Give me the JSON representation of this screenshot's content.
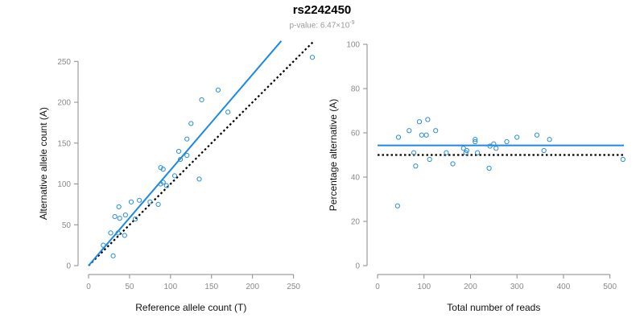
{
  "title": "rs2242450",
  "subtitle": {
    "prefix": "p-value: 6.47×10",
    "exponent": "-9"
  },
  "colors": {
    "points": "#2a8fd6",
    "fit_line": "#1e88e5",
    "reference_line": "#000000",
    "axis": "#8a8a8a",
    "tick_labels": "#8a8a8a"
  },
  "chart_data": [
    {
      "type": "scatter",
      "xlabel": "Reference allele count (T)",
      "ylabel": "Alternative allele count (A)",
      "xlim": [
        0,
        270
      ],
      "ylim": [
        0,
        270
      ],
      "xticks": [
        0,
        50,
        100,
        150,
        200,
        250
      ],
      "yticks": [
        0,
        50,
        100,
        150,
        200,
        250
      ],
      "grid": false,
      "points": [
        [
          18,
          25
        ],
        [
          27,
          40
        ],
        [
          32,
          60
        ],
        [
          38,
          58
        ],
        [
          37,
          72
        ],
        [
          45,
          62
        ],
        [
          30,
          12
        ],
        [
          36,
          40
        ],
        [
          44,
          37
        ],
        [
          52,
          78
        ],
        [
          57,
          57
        ],
        [
          62,
          80
        ],
        [
          75,
          78
        ],
        [
          85,
          75
        ],
        [
          88,
          120
        ],
        [
          91,
          118
        ],
        [
          88,
          100
        ],
        [
          91,
          102
        ],
        [
          95,
          98
        ],
        [
          105,
          110
        ],
        [
          110,
          140
        ],
        [
          112,
          130
        ],
        [
          120,
          135
        ],
        [
          120,
          155
        ],
        [
          125,
          174
        ],
        [
          135,
          106
        ],
        [
          138,
          203
        ],
        [
          158,
          215
        ],
        [
          170,
          188
        ],
        [
          273,
          255
        ]
      ],
      "fit_line": {
        "from": [
          0,
          0
        ],
        "to": [
          235,
          275
        ]
      },
      "reference_line": {
        "from": [
          0,
          0
        ],
        "to": [
          275,
          275
        ]
      }
    },
    {
      "type": "scatter",
      "xlabel": "Total number of reads",
      "ylabel": "Percentage alternative (A)",
      "xlim": [
        0,
        530
      ],
      "ylim": [
        0,
        100
      ],
      "xticks": [
        0,
        100,
        200,
        300,
        400,
        500
      ],
      "yticks": [
        0,
        20,
        40,
        60,
        80,
        100
      ],
      "grid": false,
      "points": [
        [
          43,
          27
        ],
        [
          45,
          58
        ],
        [
          68,
          61
        ],
        [
          78,
          51
        ],
        [
          82,
          45
        ],
        [
          90,
          65
        ],
        [
          95,
          59
        ],
        [
          105,
          59
        ],
        [
          108,
          66
        ],
        [
          112,
          48
        ],
        [
          125,
          61
        ],
        [
          148,
          51
        ],
        [
          162,
          46
        ],
        [
          185,
          53
        ],
        [
          190,
          51
        ],
        [
          192,
          52
        ],
        [
          210,
          56
        ],
        [
          210,
          57
        ],
        [
          215,
          51
        ],
        [
          240,
          44
        ],
        [
          242,
          54
        ],
        [
          250,
          55
        ],
        [
          255,
          53
        ],
        [
          278,
          56
        ],
        [
          300,
          58
        ],
        [
          343,
          59
        ],
        [
          358,
          52
        ],
        [
          370,
          57
        ],
        [
          528,
          48
        ]
      ],
      "fit_line": {
        "from": [
          0,
          54.3
        ],
        "to": [
          530,
          54.3
        ]
      },
      "reference_line": {
        "from": [
          0,
          50
        ],
        "to": [
          530,
          50
        ]
      }
    }
  ]
}
